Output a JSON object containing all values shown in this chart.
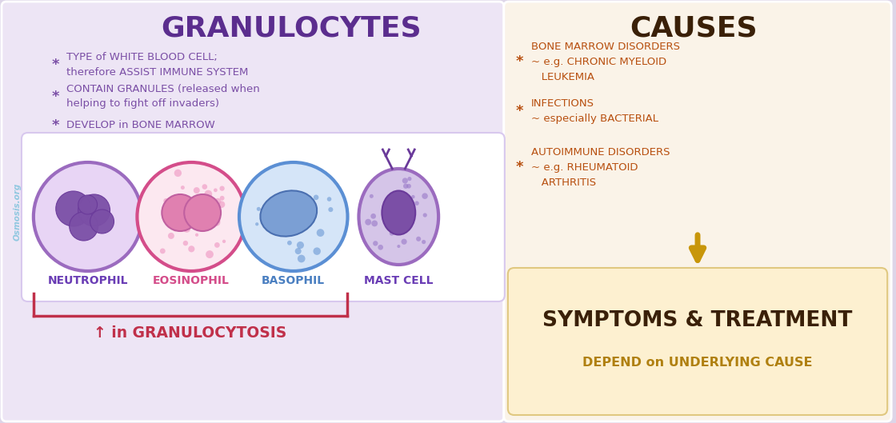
{
  "bg_color": "#ddd5e8",
  "left_panel_bg": "#ede5f5",
  "left_inner_bg": "#ffffff",
  "right_panel_bg": "#faf3e8",
  "right_bottom_bg": "#fdf0d0",
  "title_left": "GRANULOCYTES",
  "title_left_color": "#5b2d8e",
  "title_right": "CAUSES",
  "title_right_color": "#3a2008",
  "osmosis_color": "#90c8e0",
  "bullet_color_left": "#7b4fa6",
  "bullet_color_right": "#b85010",
  "left_bullets": [
    "TYPE of WHITE BLOOD CELL;\ntherefore ASSIST IMMUNE SYSTEM",
    "CONTAIN GRANULES (released when\nhelping to fight off invaders)",
    "DEVELOP in BONE MARROW"
  ],
  "right_bullets": [
    "BONE MARROW DISORDERS\n~ e.g. CHRONIC MYELOID\n   LEUKEMIA",
    "INFECTIONS\n~ especially BACTERIAL",
    "AUTOIMMUNE DISORDERS\n~ e.g. RHEUMATOID\n   ARTHRITIS"
  ],
  "cell_names": [
    "NEUTROPHIL",
    "EOSINOPHIL",
    "BASOPHIL",
    "MAST CELL"
  ],
  "cell_name_colors": [
    "#6a3db5",
    "#d44d8a",
    "#4a7fc1",
    "#6a3db5"
  ],
  "granulocytosis_text": "↑ in GRANULOCYTOSIS",
  "granulocytosis_color": "#c0304a",
  "symptoms_title": "SYMPTOMS & TREATMENT",
  "symptoms_subtitle": "DEPEND on UNDERLYING CAUSE",
  "symptoms_title_color": "#3a2008",
  "symptoms_subtitle_color": "#b08010",
  "arrow_color": "#c8960a",
  "neutrophil_outer": "#9b6bbf",
  "neutrophil_inner": "#e8d5f5",
  "neutrophil_nucleus": "#7b4fa6",
  "eosinophil_outer": "#d44d8a",
  "eosinophil_inner": "#fce8f0",
  "eosinophil_nucleus": "#e080b0",
  "basophil_outer": "#5b8fd4",
  "basophil_inner": "#d5e5f8",
  "basophil_nucleus": "#7b9fd4",
  "mastcell_outer": "#9b6bbf",
  "mastcell_inner": "#d5c5e8",
  "mastcell_nucleus": "#7b4fa6"
}
